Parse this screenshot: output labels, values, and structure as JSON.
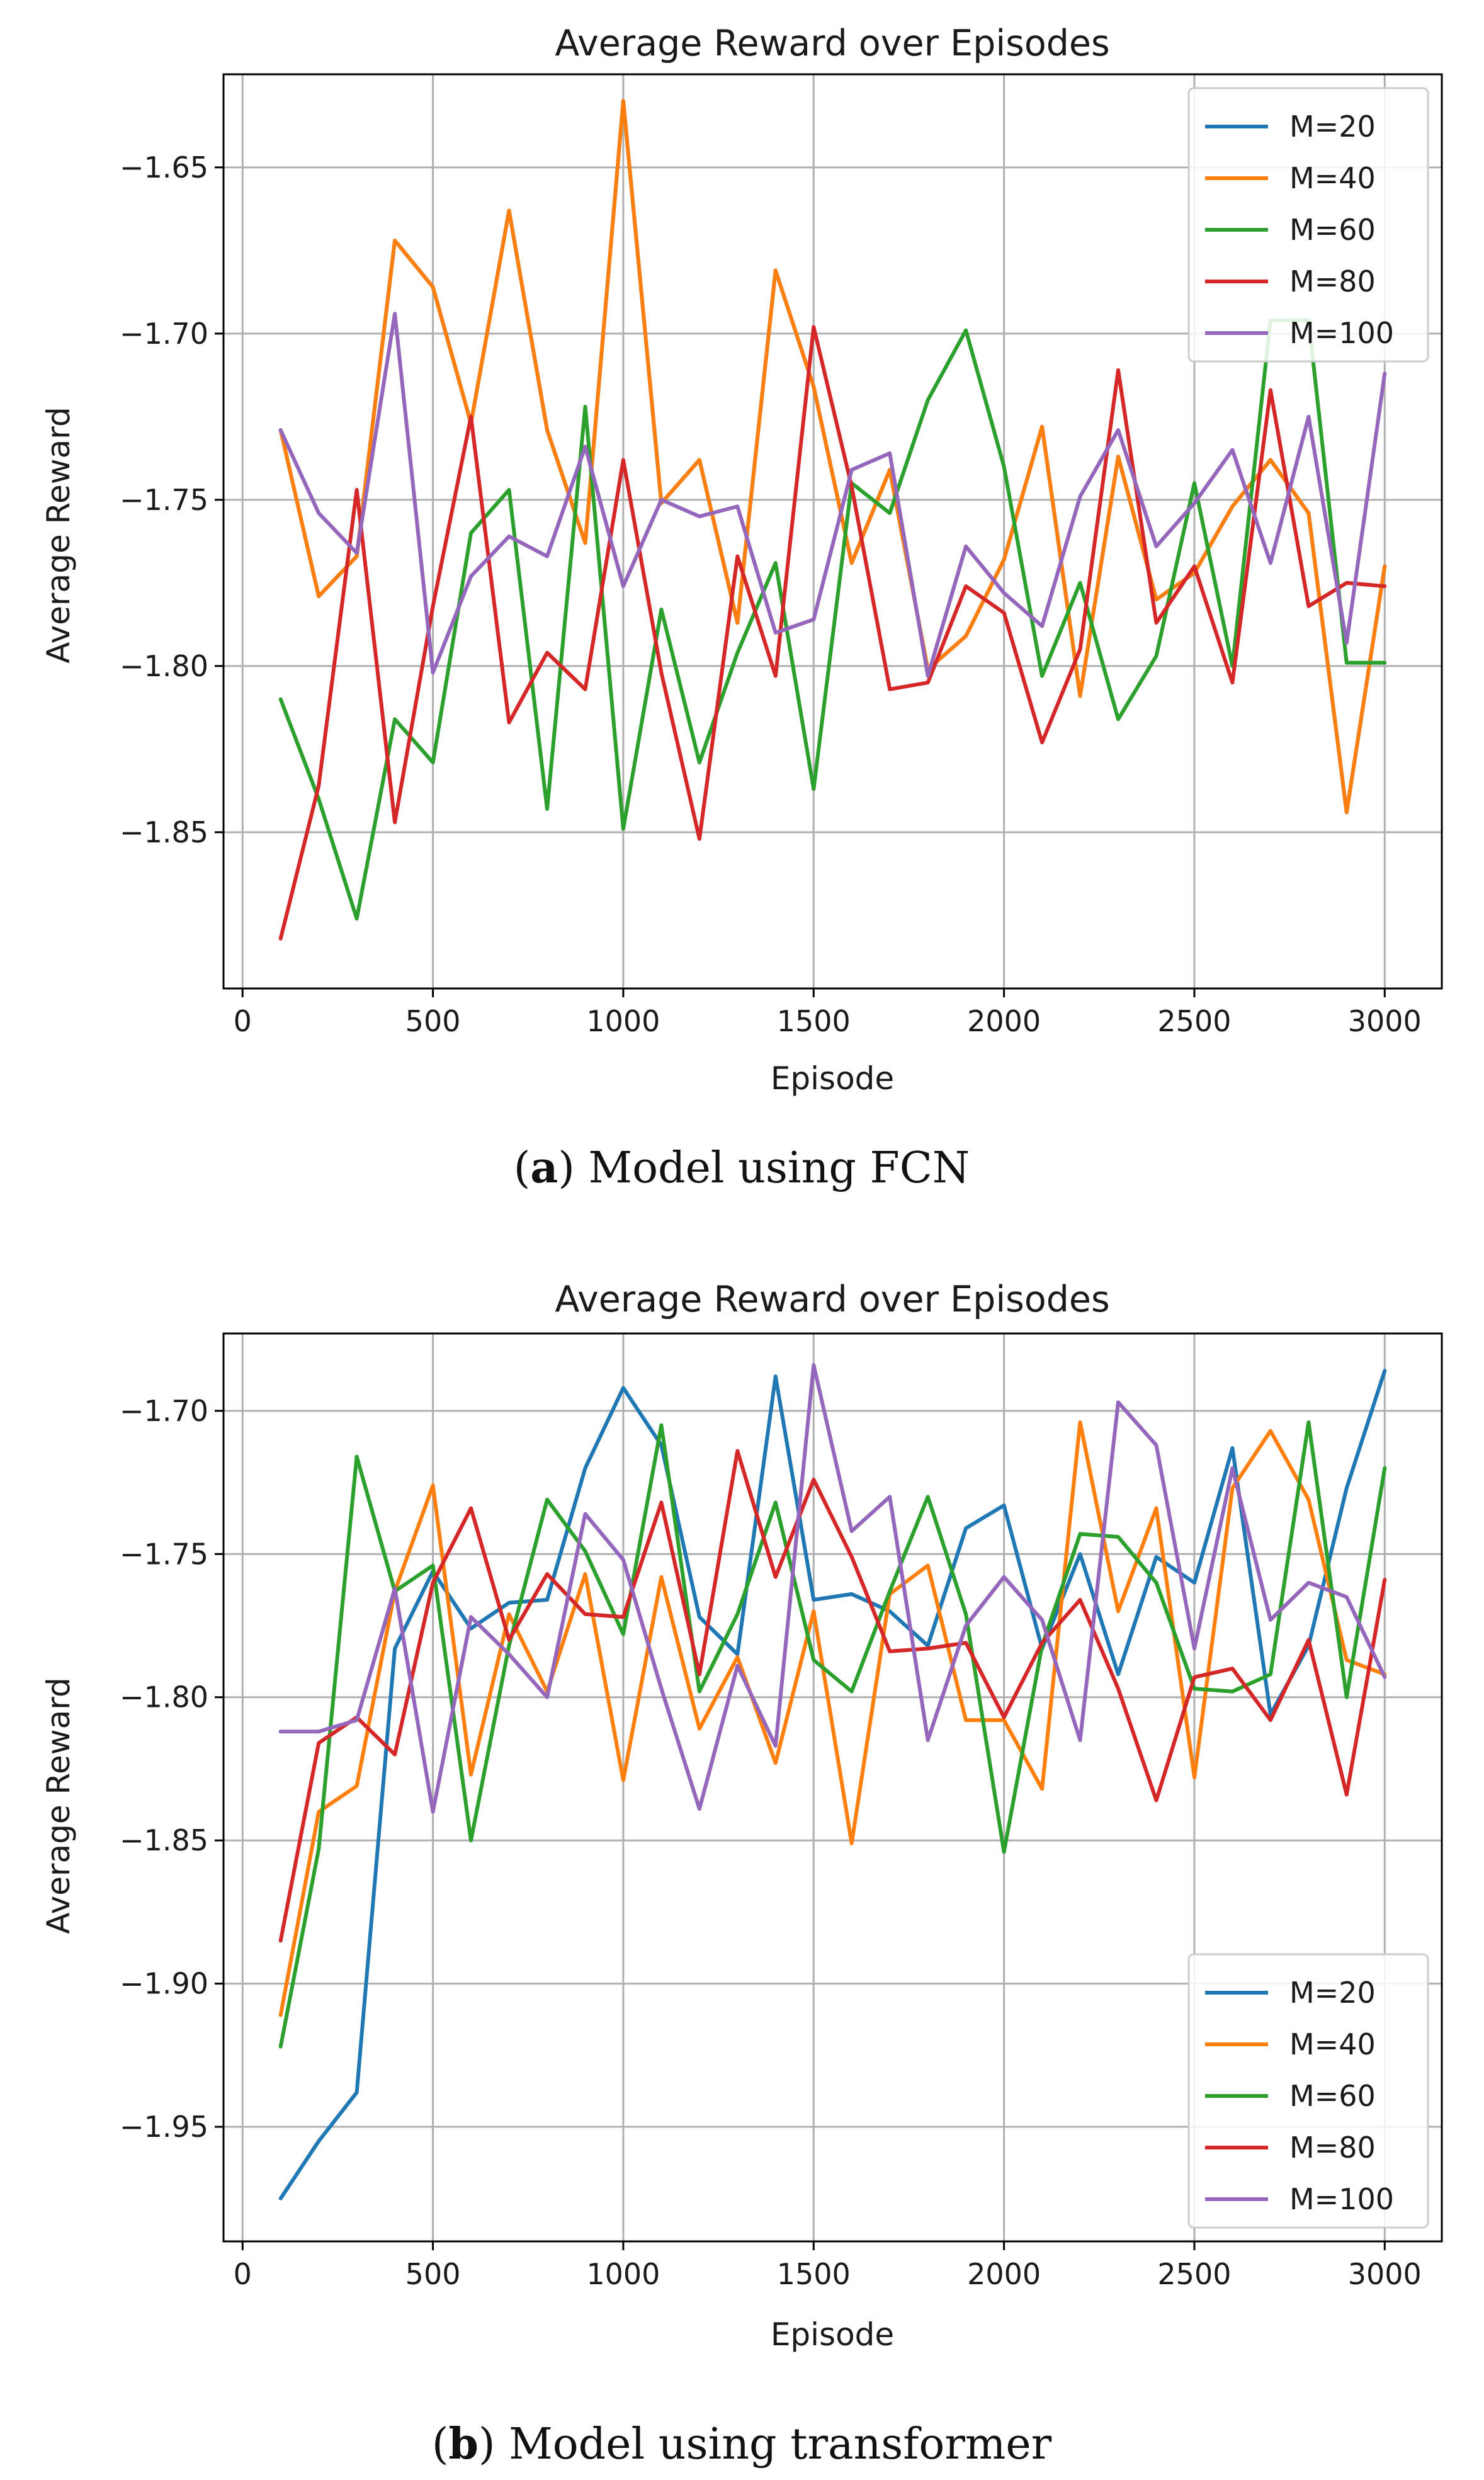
{
  "chart_data": [
    {
      "type": "line",
      "panel": "a",
      "title": "Average Reward over Episodes",
      "xlabel": "Episode",
      "ylabel": "Average Reward",
      "xlim": [
        -50,
        3150
      ],
      "ylim": [
        -1.897,
        -1.622
      ],
      "xticks": [
        0,
        500,
        1000,
        1500,
        2000,
        2500,
        3000
      ],
      "yticks": [
        -1.85,
        -1.8,
        -1.75,
        -1.7,
        -1.65
      ],
      "xtick_labels": [
        "0",
        "500",
        "1000",
        "1500",
        "2000",
        "2500",
        "3000"
      ],
      "ytick_labels": [
        "−1.85",
        "−1.80",
        "−1.75",
        "−1.70",
        "−1.65"
      ],
      "grid": true,
      "legend_loc": "top-right",
      "caption": {
        "letter": "a",
        "text": "Model using FCN"
      },
      "x": [
        100,
        200,
        300,
        400,
        500,
        600,
        700,
        800,
        900,
        1000,
        1100,
        1200,
        1300,
        1400,
        1500,
        1600,
        1700,
        1800,
        1900,
        2000,
        2100,
        2200,
        2300,
        2400,
        2500,
        2600,
        2700,
        2800,
        2900,
        3000
      ],
      "series": [
        {
          "name": "M=20",
          "color": "#1f77b4",
          "values": [
            -1.729,
            -1.779,
            -1.767,
            -1.672,
            -1.686,
            -1.727,
            -1.663,
            -1.729,
            -1.763,
            -1.63,
            -1.751,
            -1.738,
            -1.787,
            -1.681,
            -1.716,
            -1.769,
            -1.741,
            -1.801,
            -1.791,
            -1.768,
            -1.728,
            -1.809,
            -1.737,
            -1.78,
            -1.772,
            -1.752,
            -1.738,
            -1.754,
            -1.844,
            -1.77
          ]
        },
        {
          "name": "M=40",
          "color": "#ff7f0e",
          "values": [
            -1.729,
            -1.779,
            -1.767,
            -1.672,
            -1.686,
            -1.727,
            -1.663,
            -1.729,
            -1.763,
            -1.63,
            -1.751,
            -1.738,
            -1.787,
            -1.681,
            -1.716,
            -1.769,
            -1.741,
            -1.801,
            -1.791,
            -1.768,
            -1.728,
            -1.809,
            -1.737,
            -1.78,
            -1.772,
            -1.752,
            -1.738,
            -1.754,
            -1.844,
            -1.77
          ]
        },
        {
          "name": "M=60",
          "color": "#2ca02c",
          "values": [
            -1.81,
            -1.84,
            -1.876,
            -1.816,
            -1.829,
            -1.76,
            -1.747,
            -1.843,
            -1.722,
            -1.849,
            -1.783,
            -1.829,
            -1.796,
            -1.769,
            -1.837,
            -1.745,
            -1.754,
            -1.72,
            -1.699,
            -1.74,
            -1.803,
            -1.775,
            -1.816,
            -1.797,
            -1.745,
            -1.8,
            -1.696,
            -1.696,
            -1.799,
            -1.799
          ]
        },
        {
          "name": "M=80",
          "color": "#d62728",
          "values": [
            -1.882,
            -1.836,
            -1.747,
            -1.847,
            -1.782,
            -1.725,
            -1.817,
            -1.796,
            -1.807,
            -1.738,
            -1.802,
            -1.852,
            -1.767,
            -1.803,
            -1.698,
            -1.746,
            -1.807,
            -1.805,
            -1.776,
            -1.784,
            -1.823,
            -1.795,
            -1.711,
            -1.787,
            -1.77,
            -1.805,
            -1.717,
            -1.782,
            -1.775,
            -1.776
          ]
        },
        {
          "name": "M=100",
          "color": "#9467bd",
          "values": [
            -1.729,
            -1.754,
            -1.766,
            -1.694,
            -1.802,
            -1.773,
            -1.761,
            -1.767,
            -1.734,
            -1.776,
            -1.75,
            -1.755,
            -1.752,
            -1.79,
            -1.786,
            -1.741,
            -1.736,
            -1.803,
            -1.764,
            -1.778,
            -1.788,
            -1.749,
            -1.729,
            -1.764,
            -1.751,
            -1.735,
            -1.769,
            -1.725,
            -1.793,
            -1.712
          ]
        }
      ]
    },
    {
      "type": "line",
      "panel": "b",
      "title": "Average Reward over Episodes",
      "xlabel": "Episode",
      "ylabel": "Average Reward",
      "xlim": [
        -50,
        3150
      ],
      "ylim": [
        -1.99,
        -1.673
      ],
      "xticks": [
        0,
        500,
        1000,
        1500,
        2000,
        2500,
        3000
      ],
      "yticks": [
        -1.95,
        -1.9,
        -1.85,
        -1.8,
        -1.75,
        -1.7
      ],
      "xtick_labels": [
        "0",
        "500",
        "1000",
        "1500",
        "2000",
        "2500",
        "3000"
      ],
      "ytick_labels": [
        "−1.95",
        "−1.90",
        "−1.85",
        "−1.80",
        "−1.75",
        "−1.70"
      ],
      "grid": true,
      "legend_loc": "bottom-right",
      "caption": {
        "letter": "b",
        "text": "Model using transformer"
      },
      "x": [
        100,
        200,
        300,
        400,
        500,
        600,
        700,
        800,
        900,
        1000,
        1100,
        1200,
        1300,
        1400,
        1500,
        1600,
        1700,
        1800,
        1900,
        2000,
        2100,
        2200,
        2300,
        2400,
        2500,
        2600,
        2700,
        2800,
        2900,
        3000
      ],
      "series": [
        {
          "name": "M=20",
          "color": "#1f77b4",
          "values": [
            -1.975,
            -1.955,
            -1.938,
            -1.783,
            -1.756,
            -1.776,
            -1.767,
            -1.766,
            -1.72,
            -1.692,
            -1.712,
            -1.772,
            -1.785,
            -1.688,
            -1.766,
            -1.764,
            -1.77,
            -1.782,
            -1.741,
            -1.733,
            -1.783,
            -1.75,
            -1.792,
            -1.751,
            -1.76,
            -1.713,
            -1.806,
            -1.782,
            -1.727,
            -1.686
          ]
        },
        {
          "name": "M=40",
          "color": "#ff7f0e",
          "values": [
            -1.911,
            -1.84,
            -1.831,
            -1.763,
            -1.726,
            -1.827,
            -1.771,
            -1.798,
            -1.757,
            -1.829,
            -1.758,
            -1.811,
            -1.786,
            -1.823,
            -1.77,
            -1.851,
            -1.764,
            -1.754,
            -1.808,
            -1.808,
            -1.832,
            -1.704,
            -1.77,
            -1.734,
            -1.828,
            -1.727,
            -1.707,
            -1.731,
            -1.787,
            -1.792
          ]
        },
        {
          "name": "M=60",
          "color": "#2ca02c",
          "values": [
            -1.922,
            -1.853,
            -1.716,
            -1.763,
            -1.754,
            -1.85,
            -1.782,
            -1.731,
            -1.749,
            -1.778,
            -1.705,
            -1.798,
            -1.771,
            -1.732,
            -1.787,
            -1.798,
            -1.763,
            -1.73,
            -1.771,
            -1.854,
            -1.782,
            -1.743,
            -1.744,
            -1.76,
            -1.797,
            -1.798,
            -1.792,
            -1.704,
            -1.8,
            -1.72
          ]
        },
        {
          "name": "M=80",
          "color": "#d62728",
          "values": [
            -1.885,
            -1.816,
            -1.807,
            -1.82,
            -1.76,
            -1.734,
            -1.78,
            -1.757,
            -1.771,
            -1.772,
            -1.732,
            -1.792,
            -1.714,
            -1.758,
            -1.724,
            -1.751,
            -1.784,
            -1.783,
            -1.781,
            -1.807,
            -1.781,
            -1.766,
            -1.797,
            -1.836,
            -1.793,
            -1.79,
            -1.808,
            -1.78,
            -1.834,
            -1.759
          ]
        },
        {
          "name": "M=100",
          "color": "#9467bd",
          "values": [
            -1.812,
            -1.812,
            -1.808,
            -1.762,
            -1.84,
            -1.772,
            -1.785,
            -1.8,
            -1.736,
            -1.752,
            -1.797,
            -1.839,
            -1.789,
            -1.817,
            -1.684,
            -1.742,
            -1.73,
            -1.815,
            -1.775,
            -1.758,
            -1.773,
            -1.815,
            -1.697,
            -1.712,
            -1.783,
            -1.72,
            -1.773,
            -1.76,
            -1.765,
            -1.793
          ]
        }
      ]
    }
  ]
}
